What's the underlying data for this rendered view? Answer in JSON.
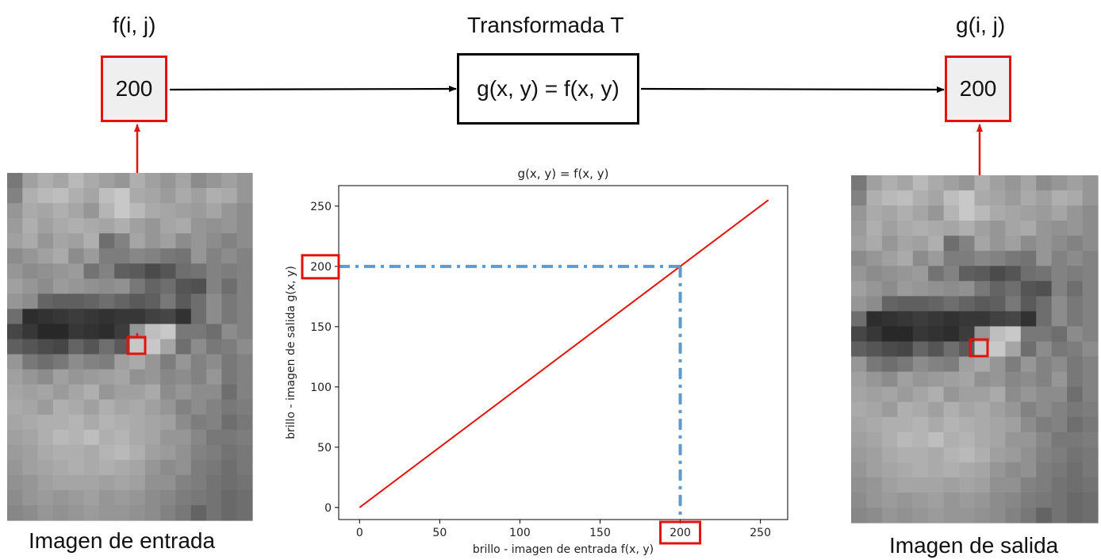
{
  "labels": {
    "input_func": "f(i, j)",
    "transform_title": "Transformada T",
    "output_func": "g(i, j)",
    "transform_formula": "g(x, y) = f(x, y)",
    "input_value": "200",
    "output_value": "200",
    "input_caption": "Imagen de entrada",
    "output_caption": "Imagen de salida"
  },
  "colors": {
    "highlight": "#e3120b",
    "guide": "#5b9bd5",
    "line": "#e3120b",
    "arrow": "#000000"
  },
  "images": {
    "input_pixels": [
      [
        120,
        160,
        175,
        165,
        185,
        170,
        160,
        150,
        175,
        160,
        150,
        165,
        140,
        150,
        160,
        150
      ],
      [
        130,
        175,
        185,
        190,
        175,
        165,
        190,
        200,
        170,
        165,
        155,
        170,
        160,
        175,
        170,
        150
      ],
      [
        150,
        170,
        165,
        175,
        165,
        150,
        180,
        200,
        185,
        170,
        165,
        160,
        155,
        165,
        150,
        140
      ],
      [
        155,
        175,
        160,
        170,
        175,
        170,
        165,
        175,
        160,
        150,
        165,
        170,
        150,
        145,
        150,
        140
      ],
      [
        160,
        170,
        150,
        165,
        160,
        175,
        110,
        130,
        165,
        150,
        160,
        140,
        150,
        140,
        130,
        140
      ],
      [
        140,
        150,
        160,
        170,
        140,
        155,
        125,
        125,
        135,
        130,
        120,
        115,
        150,
        130,
        140,
        130
      ],
      [
        150,
        140,
        145,
        150,
        155,
        115,
        130,
        95,
        90,
        75,
        85,
        110,
        115,
        130,
        125,
        130
      ],
      [
        160,
        150,
        140,
        155,
        150,
        145,
        140,
        145,
        120,
        100,
        110,
        85,
        80,
        130,
        110,
        130
      ],
      [
        150,
        140,
        100,
        95,
        95,
        100,
        110,
        100,
        90,
        95,
        120,
        90,
        110,
        140,
        120,
        130
      ],
      [
        110,
        45,
        50,
        55,
        60,
        55,
        50,
        55,
        55,
        65,
        70,
        50,
        110,
        140,
        120,
        130
      ],
      [
        70,
        55,
        40,
        40,
        55,
        50,
        45,
        60,
        150,
        190,
        200,
        120,
        120,
        110,
        140,
        130
      ],
      [
        95,
        85,
        75,
        70,
        100,
        85,
        110,
        90,
        200,
        200,
        165,
        110,
        140,
        120,
        125,
        140
      ],
      [
        150,
        120,
        110,
        120,
        140,
        130,
        125,
        160,
        170,
        150,
        125,
        150,
        130,
        140,
        120,
        130
      ],
      [
        160,
        150,
        140,
        160,
        150,
        155,
        160,
        165,
        145,
        150,
        135,
        140,
        130,
        150,
        120,
        130
      ],
      [
        165,
        160,
        165,
        155,
        165,
        175,
        150,
        160,
        160,
        170,
        140,
        150,
        140,
        140,
        110,
        130
      ],
      [
        170,
        165,
        155,
        175,
        170,
        160,
        175,
        165,
        170,
        160,
        150,
        130,
        140,
        130,
        120,
        125
      ],
      [
        165,
        170,
        175,
        175,
        180,
        170,
        180,
        175,
        170,
        165,
        160,
        140,
        125,
        130,
        110,
        120
      ],
      [
        160,
        165,
        175,
        185,
        180,
        190,
        175,
        180,
        170,
        165,
        150,
        150,
        135,
        120,
        120,
        125
      ],
      [
        155,
        160,
        170,
        175,
        175,
        170,
        180,
        185,
        175,
        160,
        155,
        145,
        130,
        125,
        115,
        120
      ],
      [
        150,
        160,
        165,
        170,
        175,
        170,
        175,
        170,
        165,
        150,
        140,
        145,
        125,
        120,
        110,
        120
      ],
      [
        145,
        150,
        160,
        165,
        165,
        165,
        160,
        165,
        160,
        145,
        145,
        130,
        125,
        115,
        110,
        115
      ],
      [
        140,
        150,
        155,
        150,
        155,
        160,
        150,
        155,
        150,
        140,
        135,
        125,
        120,
        115,
        105,
        110
      ],
      [
        135,
        140,
        150,
        145,
        150,
        155,
        150,
        150,
        145,
        140,
        130,
        120,
        100,
        115,
        105,
        110
      ]
    ]
  },
  "chart_data": {
    "type": "line",
    "title": "g(x, y) = f(x, y)",
    "xlabel": "brillo - imagen de entrada f(x, y)",
    "ylabel": "brillo - imagen de salida g(x, y)",
    "xlim": [
      -13,
      267
    ],
    "ylim": [
      -10,
      267
    ],
    "xticks": [
      0,
      50,
      100,
      150,
      200,
      250
    ],
    "yticks": [
      0,
      50,
      100,
      150,
      200,
      250
    ],
    "series": [
      {
        "x": [
          0,
          255
        ],
        "y": [
          0,
          255
        ]
      }
    ],
    "marker": {
      "x": 200,
      "y": 200,
      "xtick_label": "200",
      "ytick_label": "200"
    }
  }
}
